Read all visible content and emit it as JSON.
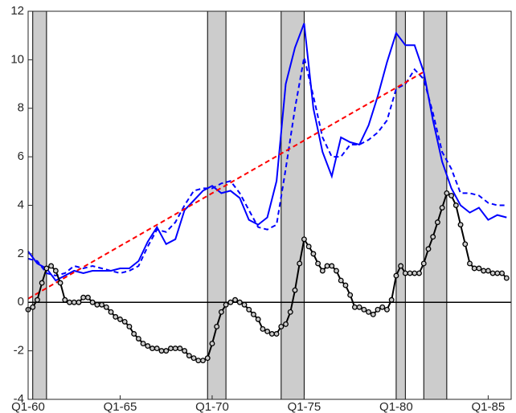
{
  "chart_data": {
    "type": "line",
    "xlim": [
      1960,
      1986.25
    ],
    "ylim": [
      -4,
      12
    ],
    "xticks": [
      {
        "value": 1960,
        "label": "Q1-60"
      },
      {
        "value": 1965,
        "label": "Q1-65"
      },
      {
        "value": 1970,
        "label": "Q1-70"
      },
      {
        "value": 1975,
        "label": "Q1-75"
      },
      {
        "value": 1980,
        "label": "Q1-80"
      },
      {
        "value": 1985,
        "label": "Q1-85"
      }
    ],
    "yticks": [
      -4,
      -2,
      0,
      2,
      4,
      6,
      8,
      10,
      12
    ],
    "shaded_periods": [
      [
        1960.25,
        1961.0
      ],
      [
        1969.75,
        1970.75
      ],
      [
        1973.75,
        1975.0
      ],
      [
        1980.0,
        1980.5
      ],
      [
        1981.5,
        1982.75
      ]
    ],
    "series": [
      {
        "color": "#0000ff",
        "dash": "solid",
        "x": [
          1960,
          1960.5,
          1961,
          1961.5,
          1962,
          1962.5,
          1963,
          1963.5,
          1964,
          1964.5,
          1965,
          1965.5,
          1966,
          1966.5,
          1967,
          1967.5,
          1968,
          1968.5,
          1969,
          1969.5,
          1970,
          1970.5,
          1971,
          1971.5,
          1972,
          1972.5,
          1973,
          1973.5,
          1974,
          1974.5,
          1975,
          1975.5,
          1976,
          1976.5,
          1977,
          1977.5,
          1978,
          1978.5,
          1979,
          1979.5,
          1980,
          1980.5,
          1981,
          1981.5,
          1982,
          1982.5,
          1983,
          1983.5,
          1984,
          1984.5,
          1985,
          1985.5,
          1986
        ],
        "values": [
          2.1,
          1.6,
          1.4,
          0.9,
          1.1,
          1.3,
          1.2,
          1.3,
          1.3,
          1.3,
          1.4,
          1.4,
          1.7,
          2.5,
          3.1,
          2.4,
          2.6,
          3.8,
          4.2,
          4.6,
          4.8,
          4.5,
          4.6,
          4.3,
          3.4,
          3.2,
          3.5,
          5.0,
          9.0,
          10.5,
          11.5,
          8.0,
          6.2,
          5.2,
          6.8,
          6.6,
          6.5,
          7.3,
          8.5,
          9.9,
          11.1,
          10.6,
          10.6,
          9.5,
          7.5,
          5.8,
          4.7,
          4.0,
          3.7,
          3.9,
          3.4,
          3.6,
          3.5
        ]
      },
      {
        "color": "#0000ff",
        "dash": "dashed",
        "x": [
          1960,
          1960.5,
          1961,
          1961.5,
          1962,
          1962.5,
          1963,
          1963.5,
          1964,
          1964.5,
          1965,
          1965.5,
          1966,
          1966.5,
          1967,
          1967.5,
          1968,
          1968.5,
          1969,
          1969.5,
          1970,
          1970.5,
          1971,
          1971.5,
          1972,
          1972.5,
          1973,
          1973.5,
          1974,
          1974.5,
          1975,
          1975.5,
          1976,
          1976.5,
          1977,
          1977.5,
          1978,
          1978.5,
          1979,
          1979.5,
          1980,
          1980.5,
          1981,
          1981.5,
          1982,
          1982.5,
          1983,
          1983.5,
          1984,
          1984.5,
          1985,
          1985.5,
          1986
        ],
        "values": [
          1.8,
          1.7,
          1.2,
          1.1,
          1.2,
          1.5,
          1.4,
          1.5,
          1.4,
          1.3,
          1.2,
          1.3,
          1.5,
          2.3,
          3.0,
          2.9,
          3.3,
          4.0,
          4.6,
          4.7,
          4.7,
          4.9,
          5.0,
          4.5,
          3.8,
          3.1,
          3.0,
          3.2,
          5.5,
          8.0,
          10.1,
          8.5,
          6.8,
          6.0,
          6.0,
          6.5,
          6.5,
          6.7,
          7.0,
          7.5,
          8.8,
          9.0,
          9.6,
          9.2,
          7.8,
          6.2,
          5.5,
          4.5,
          4.5,
          4.4,
          4.1,
          4.0,
          4.0
        ]
      },
      {
        "color": "#ff0000",
        "dash": "dashed",
        "x": [
          1960,
          1981.5
        ],
        "values": [
          0.15,
          9.5
        ]
      },
      {
        "color": "#000000",
        "dash": "solid",
        "marker": "circle",
        "x": [
          1960,
          1960.25,
          1960.5,
          1960.75,
          1961,
          1961.25,
          1961.5,
          1961.75,
          1962,
          1962.25,
          1962.5,
          1962.75,
          1963,
          1963.25,
          1963.5,
          1963.75,
          1964,
          1964.25,
          1964.5,
          1964.75,
          1965,
          1965.25,
          1965.5,
          1965.75,
          1966,
          1966.25,
          1966.5,
          1966.75,
          1967,
          1967.25,
          1967.5,
          1967.75,
          1968,
          1968.25,
          1968.5,
          1968.75,
          1969,
          1969.25,
          1969.5,
          1969.75,
          1970,
          1970.25,
          1970.5,
          1970.75,
          1971,
          1971.25,
          1971.5,
          1971.75,
          1972,
          1972.25,
          1972.5,
          1972.75,
          1973,
          1973.25,
          1973.5,
          1973.75,
          1974,
          1974.25,
          1974.5,
          1974.75,
          1975,
          1975.25,
          1975.5,
          1975.75,
          1976,
          1976.25,
          1976.5,
          1976.75,
          1977,
          1977.25,
          1977.5,
          1977.75,
          1978,
          1978.25,
          1978.5,
          1978.75,
          1979,
          1979.25,
          1979.5,
          1979.75,
          1980,
          1980.25,
          1980.5,
          1980.75,
          1981,
          1981.25,
          1981.5,
          1981.75,
          1982,
          1982.25,
          1982.5,
          1982.75,
          1983,
          1983.25,
          1983.5,
          1983.75,
          1984,
          1984.25,
          1984.5,
          1984.75,
          1985,
          1985.25,
          1985.5,
          1985.75,
          1986
        ],
        "values": [
          -0.3,
          -0.2,
          0.1,
          0.8,
          1.4,
          1.5,
          1.3,
          0.8,
          0.1,
          0.0,
          0.0,
          0.0,
          0.2,
          0.2,
          0.0,
          -0.1,
          -0.1,
          -0.2,
          -0.4,
          -0.6,
          -0.7,
          -0.8,
          -1.0,
          -1.3,
          -1.5,
          -1.7,
          -1.8,
          -1.9,
          -1.9,
          -2.0,
          -2.0,
          -1.9,
          -1.9,
          -1.9,
          -2.0,
          -2.2,
          -2.3,
          -2.4,
          -2.4,
          -2.3,
          -1.7,
          -1.0,
          -0.4,
          -0.1,
          0.0,
          0.1,
          0.0,
          -0.1,
          -0.3,
          -0.5,
          -0.7,
          -1.1,
          -1.2,
          -1.3,
          -1.3,
          -1.0,
          -0.9,
          -0.4,
          0.5,
          1.6,
          2.6,
          2.3,
          2.0,
          1.6,
          1.3,
          1.5,
          1.5,
          1.3,
          0.9,
          0.7,
          0.3,
          -0.2,
          -0.2,
          -0.3,
          -0.4,
          -0.5,
          -0.3,
          -0.2,
          -0.3,
          0.1,
          1.1,
          1.5,
          1.2,
          1.2,
          1.2,
          1.2,
          1.6,
          2.2,
          2.7,
          3.3,
          3.9,
          4.5,
          4.4,
          4.0,
          3.2,
          2.4,
          1.6,
          1.4,
          1.4,
          1.3,
          1.3,
          1.2,
          1.2,
          1.2,
          1.0
        ]
      }
    ]
  }
}
